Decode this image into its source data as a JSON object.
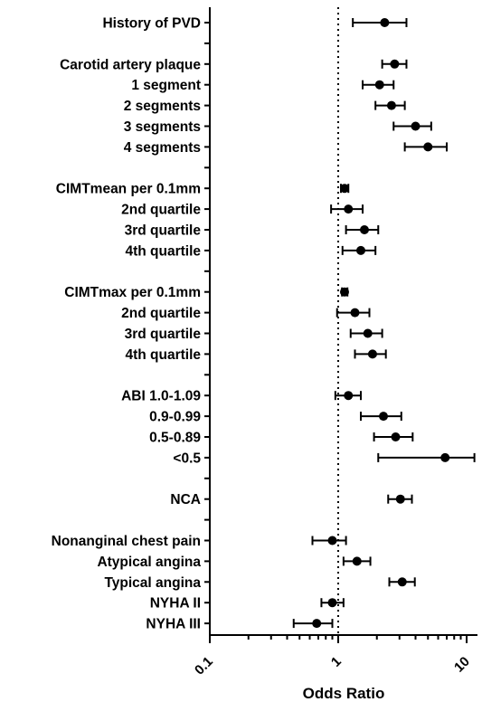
{
  "chart_data": {
    "type": "scatter",
    "subtype": "forest-plot",
    "xlabel": "Odds Ratio",
    "xscale": "log",
    "xlim": [
      0.1,
      12
    ],
    "xticks": [
      "0.1",
      "1",
      "10"
    ],
    "reference_line": 1,
    "grid": false,
    "rows": [
      {
        "label": "History of PVD",
        "or": 2.3,
        "lo": 1.3,
        "hi": 3.4
      },
      {
        "label": "",
        "spacer": true
      },
      {
        "label": "Carotid artery plaque",
        "or": 2.75,
        "lo": 2.2,
        "hi": 3.4
      },
      {
        "label": "1 segment",
        "or": 2.1,
        "lo": 1.55,
        "hi": 2.7
      },
      {
        "label": "2 segments",
        "or": 2.6,
        "lo": 1.95,
        "hi": 3.3
      },
      {
        "label": "3 segments",
        "or": 4.0,
        "lo": 2.7,
        "hi": 5.3
      },
      {
        "label": "4 segments",
        "or": 5.0,
        "lo": 3.3,
        "hi": 7.0
      },
      {
        "label": "",
        "spacer": true
      },
      {
        "label": "CIMTmean per 0.1mm",
        "or": 1.12,
        "lo": 1.05,
        "hi": 1.2
      },
      {
        "label": "2nd quartile",
        "or": 1.2,
        "lo": 0.88,
        "hi": 1.55
      },
      {
        "label": "3rd quartile",
        "or": 1.6,
        "lo": 1.15,
        "hi": 2.05
      },
      {
        "label": "4th quartile",
        "or": 1.5,
        "lo": 1.08,
        "hi": 1.95
      },
      {
        "label": "",
        "spacer": true
      },
      {
        "label": "CIMTmax per 0.1mm",
        "or": 1.12,
        "lo": 1.07,
        "hi": 1.18
      },
      {
        "label": "2nd quartile",
        "or": 1.35,
        "lo": 0.98,
        "hi": 1.75
      },
      {
        "label": "3rd quartile",
        "or": 1.7,
        "lo": 1.25,
        "hi": 2.2
      },
      {
        "label": "4th quartile",
        "or": 1.85,
        "lo": 1.35,
        "hi": 2.35
      },
      {
        "label": "",
        "spacer": true
      },
      {
        "label": "ABI 1.0-1.09",
        "or": 1.2,
        "lo": 0.95,
        "hi": 1.5
      },
      {
        "label": "0.9-0.99",
        "or": 2.25,
        "lo": 1.5,
        "hi": 3.1
      },
      {
        "label": "0.5-0.89",
        "or": 2.8,
        "lo": 1.9,
        "hi": 3.8
      },
      {
        "label": "<0.5",
        "or": 6.8,
        "lo": 2.05,
        "hi": 11.5
      },
      {
        "label": "",
        "spacer": true
      },
      {
        "label": "NCA",
        "or": 3.05,
        "lo": 2.45,
        "hi": 3.75
      },
      {
        "label": "",
        "spacer": true
      },
      {
        "label": "Nonanginal chest pain",
        "or": 0.9,
        "lo": 0.63,
        "hi": 1.15
      },
      {
        "label": "Atypical angina",
        "or": 1.4,
        "lo": 1.1,
        "hi": 1.78
      },
      {
        "label": "Typical angina",
        "or": 3.15,
        "lo": 2.5,
        "hi": 3.95
      },
      {
        "label": "NYHA II",
        "or": 0.9,
        "lo": 0.74,
        "hi": 1.1
      },
      {
        "label": "NYHA III",
        "or": 0.68,
        "lo": 0.45,
        "hi": 0.9
      }
    ]
  }
}
